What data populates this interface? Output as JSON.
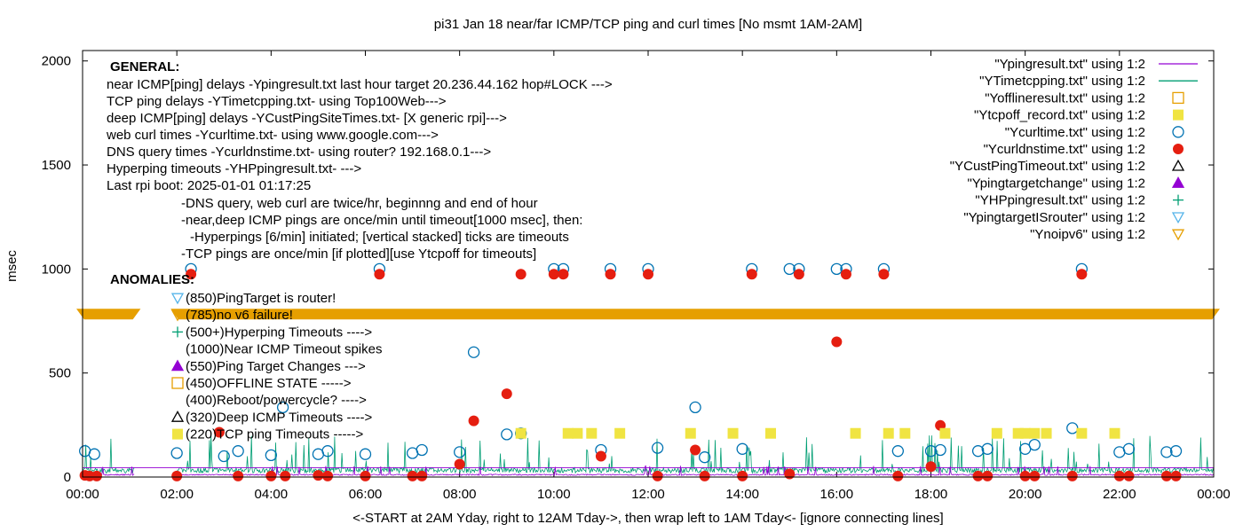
{
  "chart_data": {
    "type": "scatter",
    "title": "pi31 Jan 18  near/far ICMP/TCP ping and curl times [No msmt 1AM-2AM]",
    "xlabel": "<-START at 2AM Yday, right to 12AM Tday->, then wrap left to 1AM Tday<- [ignore connecting lines]",
    "ylabel": "msec",
    "xlim": [
      0,
      24
    ],
    "ylim": [
      0,
      2050
    ],
    "x_ticks": [
      "00:00",
      "02:00",
      "04:00",
      "06:00",
      "08:00",
      "10:00",
      "12:00",
      "14:00",
      "16:00",
      "18:00",
      "20:00",
      "22:00",
      "00:00"
    ],
    "y_ticks": [
      "0",
      "500",
      "1000",
      "1500",
      "2000"
    ],
    "grid": false,
    "legend_position": "top-right",
    "notes": [
      "GENERAL:",
      "near ICMP[ping] delays -Ypingresult.txt last hour target 20.236.44.162 hop#LOCK --->",
      "TCP ping delays -YTimetcpping.txt- using Top100Web--->",
      "deep ICMP[ping] delays -YCustPingSiteTimes.txt- [X generic rpi]--->",
      "web curl times -Ycurltime.txt- using www.google.com--->",
      "DNS query times -Ycurldnstime.txt- using router? 192.168.0.1--->",
      "Hyperping timeouts -YHPpingresult.txt- --->",
      "Last rpi boot: 2025-01-01 01:17:25",
      "-DNS query, web curl are twice/hr, beginnng and end of hour",
      "-near,deep ICMP pings are once/min until timeout[1000 msec], then:",
      "-Hyperpings [6/min] initiated; [vertical stacked] ticks are timeouts",
      "-TCP pings are once/min [if plotted][use Ytcpoff for timeouts]",
      "ANOMALIES:"
    ],
    "anomalies": [
      {
        "label": "(850)PingTarget is router!",
        "marker": "tri-down-blue"
      },
      {
        "label": "(785)no v6 failure!",
        "marker": "tri-down-orange"
      },
      {
        "label": "(500+)Hyperping Timeouts ---->",
        "marker": "plus-teal"
      },
      {
        "label": "(1000)Near ICMP Timeout spikes",
        "marker": "none"
      },
      {
        "label": "(550)Ping Target Changes --->",
        "marker": "tri-up-purple"
      },
      {
        "label": "(450)OFFLINE STATE ----->",
        "marker": "square-open-orange"
      },
      {
        "label": "(400)Reboot/powercycle? ---->",
        "marker": "none"
      },
      {
        "label": "(320)Deep ICMP Timeouts ---->",
        "marker": "tri-up-open-black"
      },
      {
        "label": "(220)TCP ping Timeouts ----->",
        "marker": "square-yellow"
      }
    ],
    "legend": [
      {
        "name": "\"Ypingresult.txt\" using 1:2",
        "marker": "line",
        "color": "#9400d3"
      },
      {
        "name": "\"YTimetcpping.txt\" using 1:2",
        "marker": "line",
        "color": "#009e73"
      },
      {
        "name": "\"Yofflineresult.txt\" using 1:2",
        "marker": "square-open",
        "color": "#e69f00"
      },
      {
        "name": "\"Ytcpoff_record.txt\" using 1:2",
        "marker": "square-filled",
        "color": "#f0e442"
      },
      {
        "name": "\"Ycurltime.txt\" using 1:2",
        "marker": "circle-open",
        "color": "#0072b2"
      },
      {
        "name": "\"Ycurldnstime.txt\" using 1:2",
        "marker": "circle-filled",
        "color": "#e51e10"
      },
      {
        "name": "\"YCustPingTimeout.txt\" using 1:2",
        "marker": "tri-up-open",
        "color": "#000000"
      },
      {
        "name": "\"Ypingtargetchange\" using 1:2",
        "marker": "tri-up-filled",
        "color": "#9400d3"
      },
      {
        "name": "\"YHPpingresult.txt\" using 1:2",
        "marker": "plus",
        "color": "#009e73"
      },
      {
        "name": "\"YpingtargetISrouter\" using 1:2",
        "marker": "tri-down-open",
        "color": "#56b4e9"
      },
      {
        "name": "\"Ynoipv6\" using 1:2",
        "marker": "tri-down-open",
        "color": "#e69f00"
      }
    ],
    "series": [
      {
        "name": "Ycurltime.txt",
        "marker": "circle-open",
        "color": "#0072b2",
        "points": [
          [
            0.05,
            125
          ],
          [
            0.25,
            110
          ],
          [
            2.0,
            115
          ],
          [
            2.3,
            1000
          ],
          [
            3.0,
            100
          ],
          [
            3.3,
            125
          ],
          [
            4.0,
            105
          ],
          [
            4.25,
            335
          ],
          [
            5.0,
            110
          ],
          [
            5.2,
            125
          ],
          [
            6.0,
            110
          ],
          [
            6.3,
            1000
          ],
          [
            7.0,
            115
          ],
          [
            7.2,
            130
          ],
          [
            8.0,
            120
          ],
          [
            8.3,
            600
          ],
          [
            9.0,
            205
          ],
          [
            9.3,
            210
          ],
          [
            10.0,
            1000
          ],
          [
            10.2,
            1000
          ],
          [
            11.0,
            130
          ],
          [
            11.2,
            1000
          ],
          [
            12.0,
            1000
          ],
          [
            12.2,
            140
          ],
          [
            13.0,
            335
          ],
          [
            13.2,
            95
          ],
          [
            14.0,
            135
          ],
          [
            14.2,
            1000
          ],
          [
            15.0,
            1000
          ],
          [
            15.2,
            1000
          ],
          [
            16.0,
            1000
          ],
          [
            16.2,
            1000
          ],
          [
            17.0,
            1000
          ],
          [
            17.3,
            125
          ],
          [
            18.0,
            125
          ],
          [
            18.2,
            130
          ],
          [
            19.0,
            125
          ],
          [
            19.2,
            135
          ],
          [
            20.0,
            135
          ],
          [
            20.2,
            155
          ],
          [
            21.0,
            235
          ],
          [
            21.2,
            1000
          ],
          [
            22.0,
            120
          ],
          [
            22.2,
            135
          ],
          [
            23.0,
            120
          ],
          [
            23.2,
            125
          ]
        ]
      },
      {
        "name": "Ycurldnstime.txt",
        "marker": "circle-filled",
        "color": "#e51e10",
        "points": [
          [
            0.05,
            8
          ],
          [
            0.15,
            5
          ],
          [
            0.3,
            5
          ],
          [
            2.0,
            5
          ],
          [
            2.3,
            975
          ],
          [
            2.9,
            215
          ],
          [
            3.3,
            5
          ],
          [
            4.0,
            5
          ],
          [
            4.3,
            5
          ],
          [
            5.0,
            8
          ],
          [
            5.2,
            5
          ],
          [
            6.0,
            5
          ],
          [
            6.3,
            975
          ],
          [
            7.0,
            5
          ],
          [
            7.2,
            5
          ],
          [
            8.0,
            62
          ],
          [
            8.3,
            270
          ],
          [
            9.0,
            400
          ],
          [
            9.3,
            975
          ],
          [
            10.0,
            975
          ],
          [
            10.2,
            975
          ],
          [
            11.0,
            100
          ],
          [
            11.2,
            975
          ],
          [
            12.0,
            975
          ],
          [
            12.2,
            5
          ],
          [
            13.0,
            130
          ],
          [
            13.2,
            5
          ],
          [
            14.0,
            5
          ],
          [
            14.2,
            975
          ],
          [
            15.0,
            15
          ],
          [
            15.2,
            975
          ],
          [
            16.0,
            650
          ],
          [
            16.2,
            975
          ],
          [
            17.0,
            975
          ],
          [
            17.3,
            5
          ],
          [
            18.0,
            50
          ],
          [
            18.2,
            248
          ],
          [
            19.0,
            5
          ],
          [
            19.2,
            5
          ],
          [
            20.0,
            5
          ],
          [
            20.2,
            5
          ],
          [
            21.0,
            5
          ],
          [
            21.2,
            975
          ],
          [
            22.0,
            5
          ],
          [
            22.2,
            5
          ],
          [
            23.0,
            5
          ],
          [
            23.2,
            5
          ]
        ]
      },
      {
        "name": "Ytcpoff_record.txt",
        "marker": "square-filled",
        "color": "#f0e442",
        "points": [
          [
            9.3,
            210
          ],
          [
            10.3,
            210
          ],
          [
            10.5,
            210
          ],
          [
            10.8,
            210
          ],
          [
            11.4,
            210
          ],
          [
            12.9,
            210
          ],
          [
            13.8,
            210
          ],
          [
            14.6,
            210
          ],
          [
            16.4,
            210
          ],
          [
            17.1,
            210
          ],
          [
            17.45,
            210
          ],
          [
            18.3,
            210
          ],
          [
            19.4,
            210
          ],
          [
            19.85,
            210
          ],
          [
            20.0,
            210
          ],
          [
            20.2,
            210
          ],
          [
            20.45,
            210
          ],
          [
            21.2,
            210
          ],
          [
            21.9,
            210
          ]
        ]
      },
      {
        "name": "Ynoipv6",
        "marker": "tri-down-open",
        "color": "#e69f00",
        "band": {
          "y": 785,
          "segments": [
            [
              0.0,
              1.1
            ],
            [
              2.0,
              24.0
            ]
          ]
        }
      }
    ]
  }
}
